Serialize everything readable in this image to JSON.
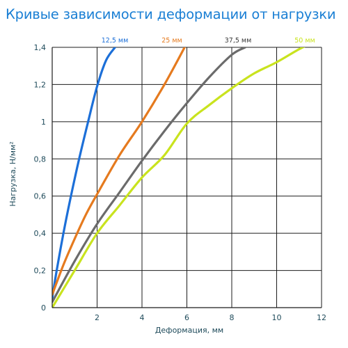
{
  "chart_data": {
    "type": "line",
    "title": "Кривые зависимости деформации от нагрузки",
    "xlabel": "Деформация, мм",
    "ylabel": "Нагрузка, Н/мм²",
    "xlim": [
      0,
      12
    ],
    "ylim": [
      0,
      1.4
    ],
    "x_ticks": [
      "2",
      "4",
      "6",
      "8",
      "10",
      "12"
    ],
    "y_ticks": [
      "0",
      "0,2",
      "0,4",
      "0,6",
      "0,8",
      "1",
      "1,2",
      "1,4"
    ],
    "grid": true,
    "legend_placement": "top",
    "series": [
      {
        "name": "12,5 мм",
        "color": "#1c6fd8",
        "x": [
          0,
          0.2,
          0.5,
          0.8,
          1.2,
          1.6,
          2.0,
          2.4,
          2.8
        ],
        "y": [
          0.05,
          0.2,
          0.4,
          0.58,
          0.8,
          1.0,
          1.19,
          1.33,
          1.4
        ]
      },
      {
        "name": "25 мм",
        "color": "#e57a1e",
        "x": [
          0,
          0.5,
          1.0,
          1.5,
          2.0,
          3.0,
          4.0,
          5.0,
          5.9
        ],
        "y": [
          0.07,
          0.23,
          0.37,
          0.5,
          0.61,
          0.82,
          1.0,
          1.2,
          1.4
        ]
      },
      {
        "name": "37,5 мм",
        "color": "#6b6b6b",
        "x": [
          0,
          1.0,
          2.0,
          3.0,
          4.0,
          5.0,
          6.0,
          7.0,
          8.0,
          8.6
        ],
        "y": [
          0.03,
          0.25,
          0.45,
          0.62,
          0.79,
          0.95,
          1.1,
          1.24,
          1.36,
          1.4
        ]
      },
      {
        "name": "50 мм",
        "color": "#c9e31e",
        "x": [
          0,
          1.0,
          2.0,
          3.0,
          4.0,
          5.0,
          6.0,
          7.0,
          8.0,
          9.0,
          10.0,
          11.0,
          11.7
        ],
        "y": [
          0.0,
          0.2,
          0.4,
          0.55,
          0.7,
          0.82,
          0.99,
          1.09,
          1.18,
          1.26,
          1.32,
          1.39,
          1.43
        ]
      }
    ]
  }
}
